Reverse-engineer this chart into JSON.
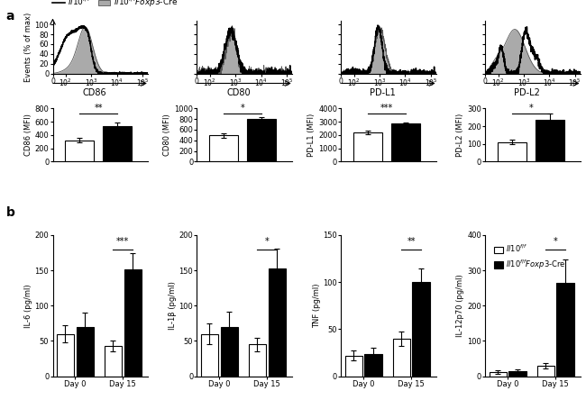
{
  "flow_ylabel": "Events (% of max)",
  "flow_markers": [
    "CD86",
    "CD80",
    "PD-L1",
    "PD-L2"
  ],
  "bar_a_data": {
    "CD86": {
      "wt": 320,
      "ko": 540,
      "wt_err": 35,
      "ko_err": 50,
      "ymax": 800,
      "yticks": [
        0,
        200,
        400,
        600,
        800
      ],
      "sig": "**",
      "ylabel": "CD86 (MFI)"
    },
    "CD80": {
      "wt": 490,
      "ko": 800,
      "wt_err": 45,
      "ko_err": 40,
      "ymax": 1000,
      "yticks": [
        0,
        200,
        400,
        600,
        800,
        1000
      ],
      "sig": "*",
      "ylabel": "CD80 (MFI)"
    },
    "PD-L1": {
      "wt": 2200,
      "ko": 2850,
      "wt_err": 120,
      "ko_err": 100,
      "ymax": 4000,
      "yticks": [
        0,
        1000,
        2000,
        3000,
        4000
      ],
      "sig": "***",
      "ylabel": "PD-L1 (MFI)"
    },
    "PD-L2": {
      "wt": 110,
      "ko": 235,
      "wt_err": 12,
      "ko_err": 38,
      "ymax": 300,
      "yticks": [
        0,
        100,
        200,
        300
      ],
      "sig": "*",
      "ylabel": "PD-L2 (MFI)"
    }
  },
  "bar_b_data": {
    "IL-6": {
      "d0_wt": 60,
      "d0_ko": 70,
      "d15_wt": 43,
      "d15_ko": 152,
      "d0_wt_e": 12,
      "d0_ko_e": 20,
      "d15_wt_e": 8,
      "d15_ko_e": 22,
      "ymax": 200,
      "yticks": [
        0,
        50,
        100,
        150,
        200
      ],
      "sig": "***",
      "ylabel": "IL-6 (pg/ml)"
    },
    "IL-1b": {
      "d0_wt": 60,
      "d0_ko": 70,
      "d15_wt": 45,
      "d15_ko": 153,
      "d0_wt_e": 15,
      "d0_ko_e": 22,
      "d15_wt_e": 10,
      "d15_ko_e": 28,
      "ymax": 200,
      "yticks": [
        0,
        50,
        100,
        150,
        200
      ],
      "sig": "*",
      "ylabel": "IL-1β (pg/ml)"
    },
    "TNF": {
      "d0_wt": 22,
      "d0_ko": 24,
      "d15_wt": 40,
      "d15_ko": 100,
      "d0_wt_e": 5,
      "d0_ko_e": 6,
      "d15_wt_e": 8,
      "d15_ko_e": 15,
      "ymax": 150,
      "yticks": [
        0,
        50,
        100,
        150
      ],
      "sig": "**",
      "ylabel": "TNF (pg/ml)"
    },
    "IL-12p70": {
      "d0_wt": 12,
      "d0_ko": 15,
      "d15_wt": 30,
      "d15_ko": 265,
      "d0_wt_e": 4,
      "d0_ko_e": 5,
      "d15_wt_e": 8,
      "d15_ko_e": 65,
      "ymax": 400,
      "yticks": [
        0,
        100,
        200,
        300,
        400
      ],
      "sig": "*",
      "ylabel": "IL-12p70 (pg/ml)"
    }
  },
  "color_flow_ko": "#aaaaaa",
  "flow_yticks": [
    0,
    20,
    40,
    60,
    80,
    100
  ]
}
